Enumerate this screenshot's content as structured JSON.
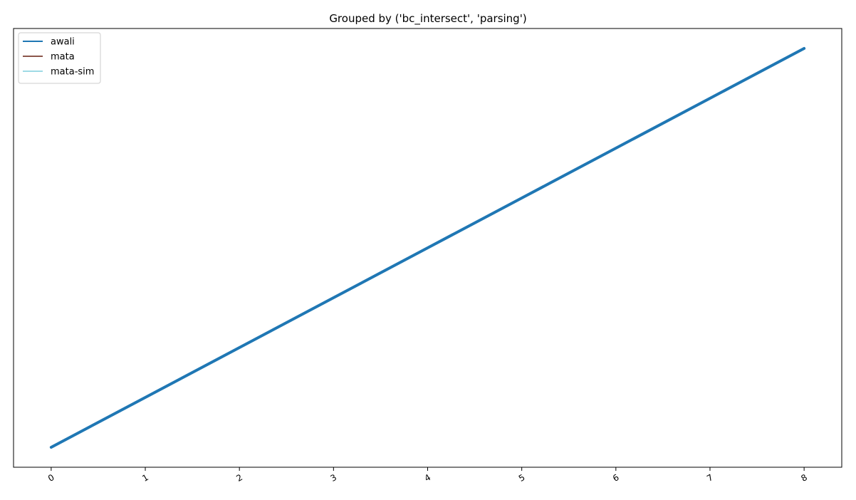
{
  "chart_data": {
    "type": "line",
    "title": "Grouped by ('bc_intersect', 'parsing')",
    "xlabel": "",
    "ylabel": "",
    "x": [
      0,
      1,
      2,
      3,
      4,
      5,
      6,
      7,
      8
    ],
    "xticks": [
      "0",
      "1",
      "2",
      "3",
      "4",
      "5",
      "6",
      "7",
      "8"
    ],
    "xlim": [
      -0.4,
      8.4
    ],
    "ylim": [
      -0.4,
      8.4
    ],
    "y_ticks_visible": false,
    "grid": false,
    "legend_position": "upper-left",
    "series": [
      {
        "name": "awali",
        "color": "#1f77b4",
        "values": [
          0,
          1,
          2,
          3,
          4,
          5,
          6,
          7,
          8
        ],
        "visible": true
      },
      {
        "name": "mata",
        "color": "#8c564b",
        "values": [
          0,
          1,
          2,
          3,
          4,
          5,
          6,
          7,
          8
        ],
        "visible": false
      },
      {
        "name": "mata-sim",
        "color": "#9edae5",
        "values": [
          0,
          1,
          2,
          3,
          4,
          5,
          6,
          7,
          8
        ],
        "visible": false
      }
    ]
  }
}
